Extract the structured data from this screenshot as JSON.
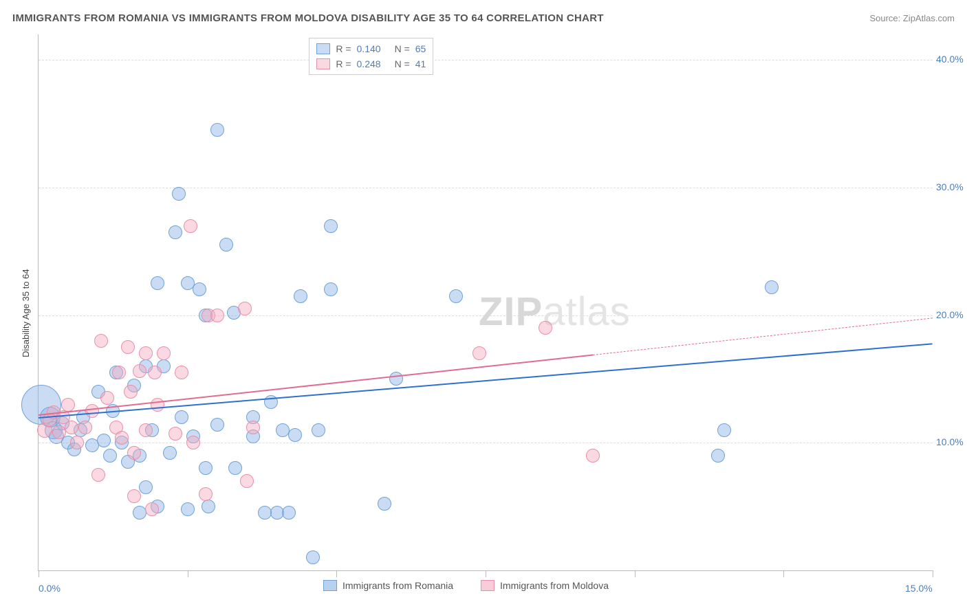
{
  "title": "IMMIGRANTS FROM ROMANIA VS IMMIGRANTS FROM MOLDOVA DISABILITY AGE 35 TO 64 CORRELATION CHART",
  "source": "Source: ZipAtlas.com",
  "ylabel": "Disability Age 35 to 64",
  "watermark_zip": "ZIP",
  "watermark_atlas": "atlas",
  "chart": {
    "type": "scatter",
    "xlim": [
      0,
      15
    ],
    "ylim": [
      0,
      42
    ],
    "xticks": [
      0,
      2.5,
      5,
      7.5,
      10,
      12.5,
      15
    ],
    "xlabels": {
      "0": "0.0%",
      "15": "15.0%"
    },
    "yticks": [
      10,
      20,
      30,
      40
    ],
    "ylabels": {
      "10": "10.0%",
      "20": "20.0%",
      "30": "30.0%",
      "40": "40.0%"
    },
    "background_color": "#ffffff",
    "grid_color": "#dddddd",
    "axis_color": "#bbbbbb",
    "tick_label_color": "#4a7ebb",
    "series": [
      {
        "name": "Immigrants from Romania",
        "fill": "rgba(137,178,228,0.45)",
        "stroke": "#6fa2d8",
        "trend_color": "#2f6fd0",
        "R": "0.140",
        "N": "65",
        "trend": {
          "x1": 0,
          "y1": 12.0,
          "x2": 15,
          "y2": 17.8,
          "solid_to_x": 15
        },
        "points": [
          {
            "x": 0.05,
            "y": 13.0,
            "r": 28
          },
          {
            "x": 0.2,
            "y": 12.0,
            "r": 14
          },
          {
            "x": 0.25,
            "y": 11.0,
            "r": 12
          },
          {
            "x": 0.3,
            "y": 10.5,
            "r": 10
          },
          {
            "x": 0.4,
            "y": 11.5,
            "r": 9
          },
          {
            "x": 0.5,
            "y": 10.0,
            "r": 9
          },
          {
            "x": 0.6,
            "y": 9.5,
            "r": 9
          },
          {
            "x": 0.7,
            "y": 11.0,
            "r": 9
          },
          {
            "x": 0.75,
            "y": 12.0,
            "r": 9
          },
          {
            "x": 0.9,
            "y": 9.8,
            "r": 9
          },
          {
            "x": 1.0,
            "y": 14.0,
            "r": 9
          },
          {
            "x": 1.1,
            "y": 10.2,
            "r": 9
          },
          {
            "x": 1.2,
            "y": 9.0,
            "r": 9
          },
          {
            "x": 1.25,
            "y": 12.5,
            "r": 9
          },
          {
            "x": 1.3,
            "y": 15.5,
            "r": 9
          },
          {
            "x": 1.4,
            "y": 10.0,
            "r": 9
          },
          {
            "x": 1.5,
            "y": 8.5,
            "r": 9
          },
          {
            "x": 1.6,
            "y": 14.5,
            "r": 9
          },
          {
            "x": 1.7,
            "y": 9.0,
            "r": 9
          },
          {
            "x": 1.7,
            "y": 4.5,
            "r": 9
          },
          {
            "x": 1.8,
            "y": 16.0,
            "r": 9
          },
          {
            "x": 1.8,
            "y": 6.5,
            "r": 9
          },
          {
            "x": 1.9,
            "y": 11.0,
            "r": 9
          },
          {
            "x": 2.0,
            "y": 22.5,
            "r": 9
          },
          {
            "x": 2.0,
            "y": 5.0,
            "r": 9
          },
          {
            "x": 2.1,
            "y": 16.0,
            "r": 9
          },
          {
            "x": 2.2,
            "y": 9.2,
            "r": 9
          },
          {
            "x": 2.3,
            "y": 26.5,
            "r": 9
          },
          {
            "x": 2.35,
            "y": 29.5,
            "r": 9
          },
          {
            "x": 2.4,
            "y": 12.0,
            "r": 9
          },
          {
            "x": 2.5,
            "y": 22.5,
            "r": 9
          },
          {
            "x": 2.5,
            "y": 4.8,
            "r": 9
          },
          {
            "x": 2.6,
            "y": 10.5,
            "r": 9
          },
          {
            "x": 2.7,
            "y": 22.0,
            "r": 9
          },
          {
            "x": 2.8,
            "y": 8.0,
            "r": 9
          },
          {
            "x": 2.8,
            "y": 20.0,
            "r": 9
          },
          {
            "x": 2.85,
            "y": 5.0,
            "r": 9
          },
          {
            "x": 3.0,
            "y": 11.4,
            "r": 9
          },
          {
            "x": 3.0,
            "y": 34.5,
            "r": 9
          },
          {
            "x": 3.15,
            "y": 25.5,
            "r": 9
          },
          {
            "x": 3.28,
            "y": 20.2,
            "r": 9
          },
          {
            "x": 3.3,
            "y": 8.0,
            "r": 9
          },
          {
            "x": 3.6,
            "y": 12.0,
            "r": 9
          },
          {
            "x": 3.6,
            "y": 10.5,
            "r": 9
          },
          {
            "x": 3.8,
            "y": 4.5,
            "r": 9
          },
          {
            "x": 3.9,
            "y": 13.2,
            "r": 9
          },
          {
            "x": 4.0,
            "y": 4.5,
            "r": 9
          },
          {
            "x": 4.1,
            "y": 11.0,
            "r": 9
          },
          {
            "x": 4.2,
            "y": 4.5,
            "r": 9
          },
          {
            "x": 4.3,
            "y": 10.6,
            "r": 9
          },
          {
            "x": 4.4,
            "y": 21.5,
            "r": 9
          },
          {
            "x": 4.6,
            "y": 1.0,
            "r": 9
          },
          {
            "x": 4.7,
            "y": 11.0,
            "r": 9
          },
          {
            "x": 4.9,
            "y": 22.0,
            "r": 9
          },
          {
            "x": 4.9,
            "y": 27.0,
            "r": 9
          },
          {
            "x": 5.8,
            "y": 5.2,
            "r": 9
          },
          {
            "x": 6.0,
            "y": 15.0,
            "r": 9
          },
          {
            "x": 7.0,
            "y": 21.5,
            "r": 9
          },
          {
            "x": 11.4,
            "y": 9.0,
            "r": 9
          },
          {
            "x": 11.5,
            "y": 11.0,
            "r": 9
          },
          {
            "x": 12.3,
            "y": 22.2,
            "r": 9
          }
        ]
      },
      {
        "name": "Immigrants from Moldova",
        "fill": "rgba(244,170,190,0.45)",
        "stroke": "#e98fa9",
        "trend_color": "#e36b8e",
        "R": "0.248",
        "N": "41",
        "trend": {
          "x1": 0,
          "y1": 12.2,
          "x2": 15,
          "y2": 19.8,
          "solid_to_x": 9.3
        },
        "points": [
          {
            "x": 0.1,
            "y": 11.0,
            "r": 10
          },
          {
            "x": 0.18,
            "y": 11.8,
            "r": 9
          },
          {
            "x": 0.25,
            "y": 12.4,
            "r": 9
          },
          {
            "x": 0.35,
            "y": 10.8,
            "r": 9
          },
          {
            "x": 0.42,
            "y": 12.0,
            "r": 9
          },
          {
            "x": 0.5,
            "y": 13.0,
            "r": 9
          },
          {
            "x": 0.55,
            "y": 11.2,
            "r": 9
          },
          {
            "x": 0.65,
            "y": 10.0,
            "r": 9
          },
          {
            "x": 0.78,
            "y": 11.2,
            "r": 9
          },
          {
            "x": 0.9,
            "y": 12.5,
            "r": 9
          },
          {
            "x": 1.0,
            "y": 7.5,
            "r": 9
          },
          {
            "x": 1.05,
            "y": 18.0,
            "r": 9
          },
          {
            "x": 1.15,
            "y": 13.5,
            "r": 9
          },
          {
            "x": 1.3,
            "y": 11.2,
            "r": 9
          },
          {
            "x": 1.35,
            "y": 15.5,
            "r": 9
          },
          {
            "x": 1.4,
            "y": 10.4,
            "r": 9
          },
          {
            "x": 1.5,
            "y": 17.5,
            "r": 9
          },
          {
            "x": 1.55,
            "y": 14.0,
            "r": 9
          },
          {
            "x": 1.6,
            "y": 9.2,
            "r": 9
          },
          {
            "x": 1.6,
            "y": 5.8,
            "r": 9
          },
          {
            "x": 1.7,
            "y": 15.6,
            "r": 9
          },
          {
            "x": 1.8,
            "y": 11.0,
            "r": 9
          },
          {
            "x": 1.8,
            "y": 17.0,
            "r": 9
          },
          {
            "x": 1.9,
            "y": 4.8,
            "r": 9
          },
          {
            "x": 1.95,
            "y": 15.5,
            "r": 9
          },
          {
            "x": 2.0,
            "y": 13.0,
            "r": 9
          },
          {
            "x": 2.1,
            "y": 17.0,
            "r": 9
          },
          {
            "x": 2.3,
            "y": 10.7,
            "r": 9
          },
          {
            "x": 2.4,
            "y": 15.5,
            "r": 9
          },
          {
            "x": 2.55,
            "y": 27.0,
            "r": 9
          },
          {
            "x": 2.6,
            "y": 10.0,
            "r": 9
          },
          {
            "x": 2.8,
            "y": 6.0,
            "r": 9
          },
          {
            "x": 2.85,
            "y": 20.0,
            "r": 9
          },
          {
            "x": 3.0,
            "y": 20.0,
            "r": 9
          },
          {
            "x": 3.46,
            "y": 20.5,
            "r": 9
          },
          {
            "x": 3.5,
            "y": 7.0,
            "r": 9
          },
          {
            "x": 3.6,
            "y": 11.2,
            "r": 9
          },
          {
            "x": 7.4,
            "y": 17.0,
            "r": 9
          },
          {
            "x": 8.5,
            "y": 19.0,
            "r": 9
          },
          {
            "x": 9.3,
            "y": 9.0,
            "r": 9
          }
        ]
      }
    ]
  },
  "legend_bottom": [
    {
      "label": "Immigrants from Romania",
      "fill": "rgba(137,178,228,0.6)",
      "stroke": "#6fa2d8"
    },
    {
      "label": "Immigrants from Moldova",
      "fill": "rgba(244,170,190,0.6)",
      "stroke": "#e98fa9"
    }
  ]
}
